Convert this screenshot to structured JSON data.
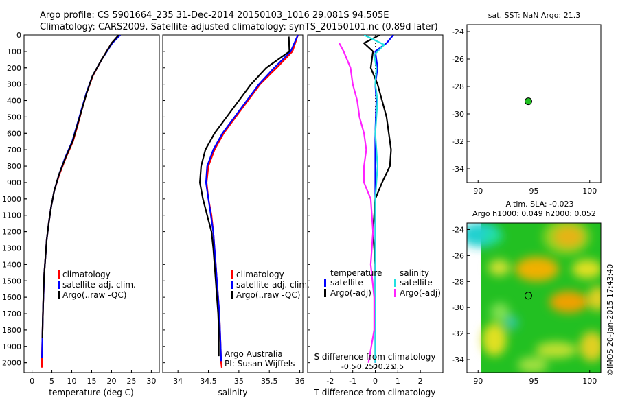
{
  "header": {
    "line1": "Argo profile: CS 5901664_235 31-Dec-2014 20150103_1016 29.081S 94.505E",
    "line2": "Climatology: CARS2009. Satellite-adjusted climatology: synTS_20150101.nc (0.89d later)"
  },
  "credit": {
    "org": "Argo Australia",
    "pi": "PI: Susan Wijffels",
    "stamp": "©IMOS 20-Jan-2015 17:43:40"
  },
  "colors": {
    "climatology": "#ff0000",
    "satellite_adj": "#0000ff",
    "argo": "#000000",
    "sat_cyan": "#22e0e0",
    "argo_magenta": "#ff22ff",
    "map_ocean": "#22c022"
  },
  "chart_data": [
    {
      "type": "line",
      "name": "temperature-profile",
      "xlabel": "temperature (deg C)",
      "ylabel": "",
      "xlim": [
        -2,
        32
      ],
      "ylim": [
        2060,
        0
      ],
      "xticks": [
        0,
        5,
        10,
        15,
        20,
        25,
        30
      ],
      "yticks": [
        0,
        100,
        200,
        300,
        400,
        500,
        600,
        700,
        800,
        900,
        1000,
        1100,
        1200,
        1300,
        1400,
        1500,
        1600,
        1700,
        1800,
        1900,
        2000
      ],
      "legend": [
        "climatology",
        "satellite-adj. clim.",
        "Argo(..raw -QC)"
      ],
      "series": [
        {
          "name": "climatology",
          "x": [
            21.9,
            20.0,
            17.5,
            15.3,
            13.8,
            12.6,
            11.5,
            10.3,
            8.5,
            6.9,
            5.6,
            4.8,
            4.2,
            3.7,
            3.4,
            3.1,
            2.95,
            2.8,
            2.7,
            2.6,
            2.5,
            2.5
          ],
          "y": [
            0,
            50,
            150,
            250,
            350,
            450,
            550,
            650,
            750,
            850,
            950,
            1050,
            1150,
            1250,
            1350,
            1450,
            1550,
            1650,
            1750,
            1850,
            1950,
            2030
          ]
        },
        {
          "name": "satellite-adj. clim.",
          "x": [
            22.2,
            20.2,
            17.5,
            15.2,
            13.7,
            12.5,
            11.3,
            10.1,
            8.3,
            6.8,
            5.6,
            4.8,
            4.2,
            3.7,
            3.4,
            3.1,
            2.95,
            2.8,
            2.7,
            2.6,
            2.5
          ],
          "y": [
            0,
            50,
            150,
            250,
            350,
            450,
            550,
            650,
            750,
            850,
            950,
            1050,
            1150,
            1250,
            1350,
            1450,
            1550,
            1650,
            1750,
            1850,
            1970
          ]
        },
        {
          "name": "Argo(..raw -QC)",
          "x": [
            21.8,
            20.0,
            17.5,
            15.2,
            13.8,
            12.6,
            11.4,
            10.2,
            8.4,
            6.8,
            5.6,
            4.8,
            4.2,
            3.7,
            3.4,
            3.1,
            2.9,
            2.8,
            2.7,
            2.6
          ],
          "y": [
            0,
            50,
            150,
            250,
            350,
            450,
            550,
            650,
            750,
            850,
            950,
            1050,
            1150,
            1250,
            1350,
            1450,
            1550,
            1650,
            1750,
            1850
          ]
        }
      ]
    },
    {
      "type": "line",
      "name": "salinity-profile",
      "xlabel": "salinity",
      "xlim": [
        33.75,
        36.05
      ],
      "ylim": [
        2060,
        0
      ],
      "xticks": [
        34,
        34.5,
        35,
        35.5,
        36
      ],
      "legend": [
        "climatology",
        "satellite-adj. clim.",
        "Argo(..raw -QC)"
      ],
      "series": [
        {
          "name": "climatology",
          "x": [
            35.97,
            35.88,
            35.62,
            35.35,
            35.15,
            34.95,
            34.75,
            34.6,
            34.5,
            34.47,
            34.5,
            34.55,
            34.58,
            34.6,
            34.62,
            34.64,
            34.66,
            34.68,
            34.69,
            34.7,
            34.71,
            34.72
          ],
          "y": [
            0,
            100,
            200,
            300,
            400,
            500,
            600,
            700,
            800,
            900,
            1000,
            1100,
            1200,
            1300,
            1400,
            1500,
            1600,
            1700,
            1800,
            1900,
            2000,
            2030
          ]
        },
        {
          "name": "satellite-adj. clim.",
          "x": [
            35.97,
            35.85,
            35.58,
            35.33,
            35.13,
            34.93,
            34.73,
            34.58,
            34.48,
            34.46,
            34.5,
            34.54,
            34.58,
            34.6,
            34.62,
            34.64,
            34.66,
            34.68,
            34.69,
            34.7,
            34.71
          ],
          "y": [
            0,
            100,
            200,
            300,
            400,
            500,
            600,
            700,
            800,
            900,
            1000,
            1100,
            1200,
            1300,
            1400,
            1500,
            1600,
            1700,
            1800,
            1900,
            1990
          ]
        },
        {
          "name": "Argo(..raw -QC)",
          "x": [
            35.82,
            35.83,
            35.45,
            35.2,
            35.0,
            34.8,
            34.6,
            34.45,
            34.38,
            34.36,
            34.41,
            34.48,
            34.55,
            34.58,
            34.6,
            34.62,
            34.64,
            34.66,
            34.67,
            34.67
          ],
          "y": [
            10,
            100,
            200,
            300,
            400,
            500,
            600,
            700,
            800,
            900,
            1000,
            1100,
            1200,
            1300,
            1400,
            1500,
            1600,
            1700,
            1800,
            1960
          ]
        }
      ]
    },
    {
      "type": "line",
      "name": "difference-profile",
      "xlabel": "T difference from climatology",
      "xlabel2": "S difference from climatology",
      "xlim": [
        -3,
        3
      ],
      "ylim": [
        2060,
        0
      ],
      "xticks_T": [
        -2,
        -1,
        0,
        1,
        2
      ],
      "xticks_S": [
        "-0.5",
        "-0.25",
        "0",
        "0.25",
        "0.5"
      ],
      "legend_headings": [
        "temperature",
        "salinity"
      ],
      "legend": [
        "satellite",
        "Argo(-adj)",
        "satellite",
        "Argo(-adj)"
      ],
      "series": [
        {
          "name": "temperature satellite",
          "x": [
            0.8,
            0.5,
            0.0,
            0.1,
            0.0,
            0.05,
            0.0,
            0.0,
            0.0,
            0.0,
            0.0,
            0.0,
            0.0,
            0.0
          ],
          "y": [
            0,
            50,
            100,
            200,
            300,
            400,
            600,
            800,
            1000,
            1200,
            1400,
            1600,
            1800,
            2000
          ]
        },
        {
          "name": "temperature Argo(-adj)",
          "x": [
            0.2,
            -0.5,
            -0.1,
            -0.2,
            0.1,
            0.3,
            0.5,
            0.6,
            0.7,
            0.65,
            0.3,
            0.0,
            -0.1,
            0.0,
            0.0
          ],
          "y": [
            0,
            50,
            100,
            200,
            300,
            400,
            500,
            600,
            700,
            800,
            900,
            1000,
            1200,
            1400,
            1800
          ]
        },
        {
          "name": "salinity satellite",
          "x": [
            -0.5,
            0.4,
            -0.05,
            0.05,
            0.0,
            0.1,
            0.0,
            0.1,
            0.0,
            0.0,
            0.0,
            0.0
          ],
          "y": [
            0,
            60,
            120,
            200,
            300,
            400,
            600,
            800,
            1000,
            1200,
            1600,
            2000
          ]
        },
        {
          "name": "salinity Argo(-adj)",
          "x": [
            -1.6,
            -1.4,
            -1.1,
            -1.0,
            -0.8,
            -0.7,
            -0.5,
            -0.4,
            -0.5,
            -0.5,
            -0.2,
            -0.1,
            -0.2,
            -0.05,
            -0.05,
            -0.3
          ],
          "y": [
            50,
            100,
            200,
            300,
            400,
            500,
            600,
            700,
            800,
            900,
            1000,
            1200,
            1400,
            1600,
            1800,
            2000
          ]
        }
      ]
    },
    {
      "type": "scatter",
      "name": "location-map",
      "title": "sat. SST: NaN Argo: 21.3",
      "xlim": [
        89,
        101
      ],
      "ylim": [
        -35,
        -23.5
      ],
      "xticks": [
        90,
        95,
        100
      ],
      "yticks": [
        -24,
        -26,
        -28,
        -30,
        -32,
        -34
      ],
      "points": [
        {
          "x": 94.505,
          "y": -29.081
        }
      ]
    },
    {
      "type": "heatmap",
      "name": "altimetry-map",
      "title_line1": "Altim. SLA: -0.023",
      "title_line2": "Argo h1000: 0.049 h2000: 0.052",
      "xlim": [
        89,
        101
      ],
      "ylim": [
        -35,
        -23.5
      ],
      "xticks": [
        90,
        95,
        100
      ],
      "yticks": [
        -24,
        -26,
        -28,
        -30,
        -32,
        -34
      ],
      "points": [
        {
          "x": 94.505,
          "y": -29.081
        }
      ]
    }
  ]
}
